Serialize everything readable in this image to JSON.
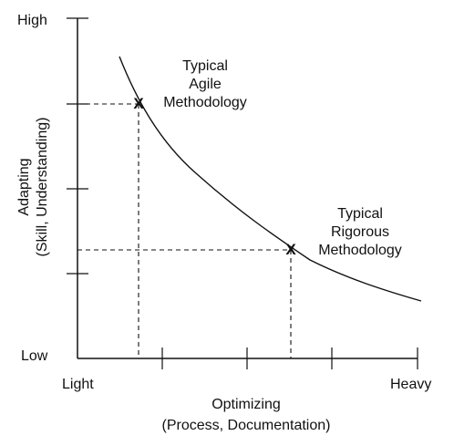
{
  "diagram": {
    "y_axis": {
      "label_line1": "Adapting",
      "label_line2": "(Skill, Understanding)",
      "high_label": "High",
      "low_label": "Low",
      "tick_count": 4
    },
    "x_axis": {
      "label_line1": "Optimizing",
      "label_line2": "(Process, Documentation)",
      "light_label": "Light",
      "heavy_label": "Heavy",
      "tick_count": 4
    },
    "agile": {
      "marker": "X",
      "line1": "Typical",
      "line2": "Agile",
      "line3": "Methodology"
    },
    "rigorous": {
      "marker": "X",
      "line1": "Typical",
      "line2": "Rigorous",
      "line3": "Methodology"
    },
    "colors": {
      "line": "#111111",
      "background": "#ffffff"
    }
  }
}
